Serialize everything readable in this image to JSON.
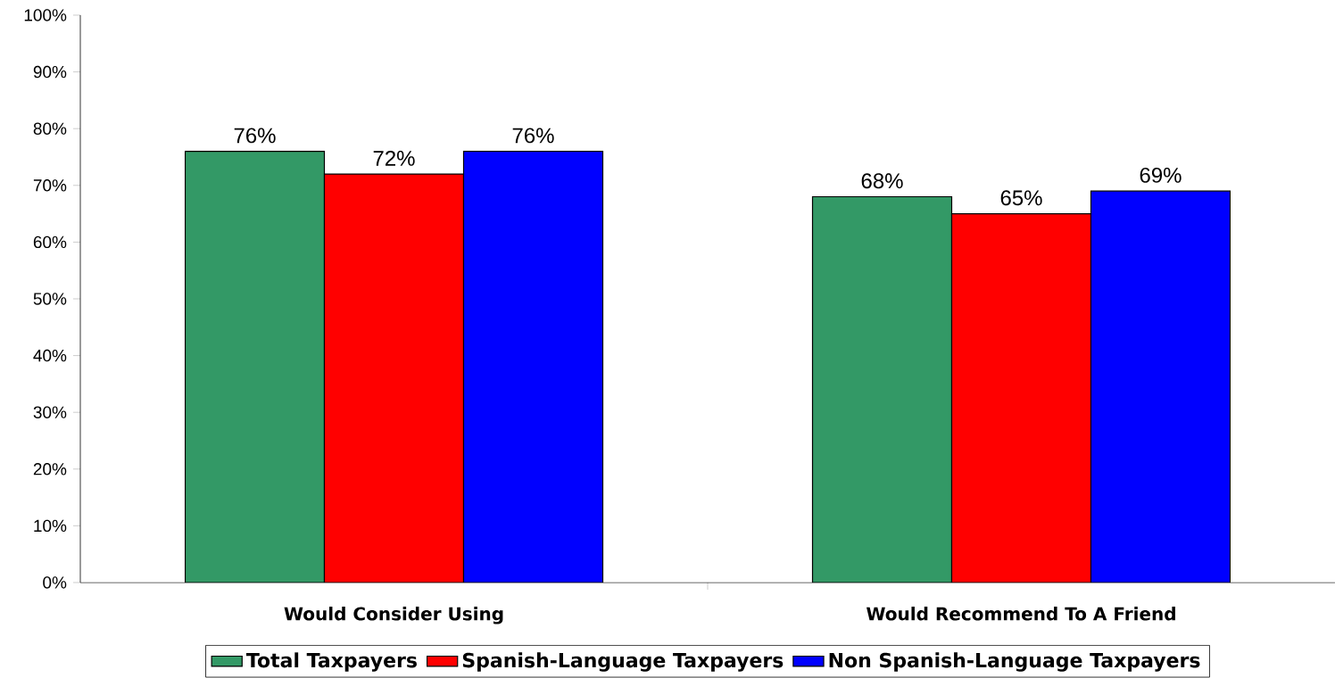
{
  "chart_data": {
    "type": "bar",
    "categories": [
      "Would Consider Using",
      "Would Recommend To A Friend"
    ],
    "series": [
      {
        "name": "Total Taxpayers",
        "color": "#339966",
        "values": [
          76,
          68
        ],
        "value_labels": [
          "76%",
          "68%"
        ]
      },
      {
        "name": "Spanish-Language Taxpayers",
        "color": "#ff0000",
        "values": [
          72,
          65
        ],
        "value_labels": [
          "72%",
          "65%"
        ]
      },
      {
        "name": "Non Spanish-Language Taxpayers",
        "color": "#0000ff",
        "values": [
          76,
          69
        ],
        "value_labels": [
          "76%",
          "69%"
        ]
      }
    ],
    "ylim": [
      0,
      100
    ],
    "yticks": [
      {
        "value": 0,
        "label": "0%"
      },
      {
        "value": 10,
        "label": "10%"
      },
      {
        "value": 20,
        "label": "20%"
      },
      {
        "value": 30,
        "label": "30%"
      },
      {
        "value": 40,
        "label": "40%"
      },
      {
        "value": 50,
        "label": "50%"
      },
      {
        "value": 60,
        "label": "60%"
      },
      {
        "value": 70,
        "label": "70%"
      },
      {
        "value": 80,
        "label": "80%"
      },
      {
        "value": 90,
        "label": "90%"
      },
      {
        "value": 100,
        "label": "100%"
      }
    ],
    "grid": false,
    "legend": "bottom"
  }
}
